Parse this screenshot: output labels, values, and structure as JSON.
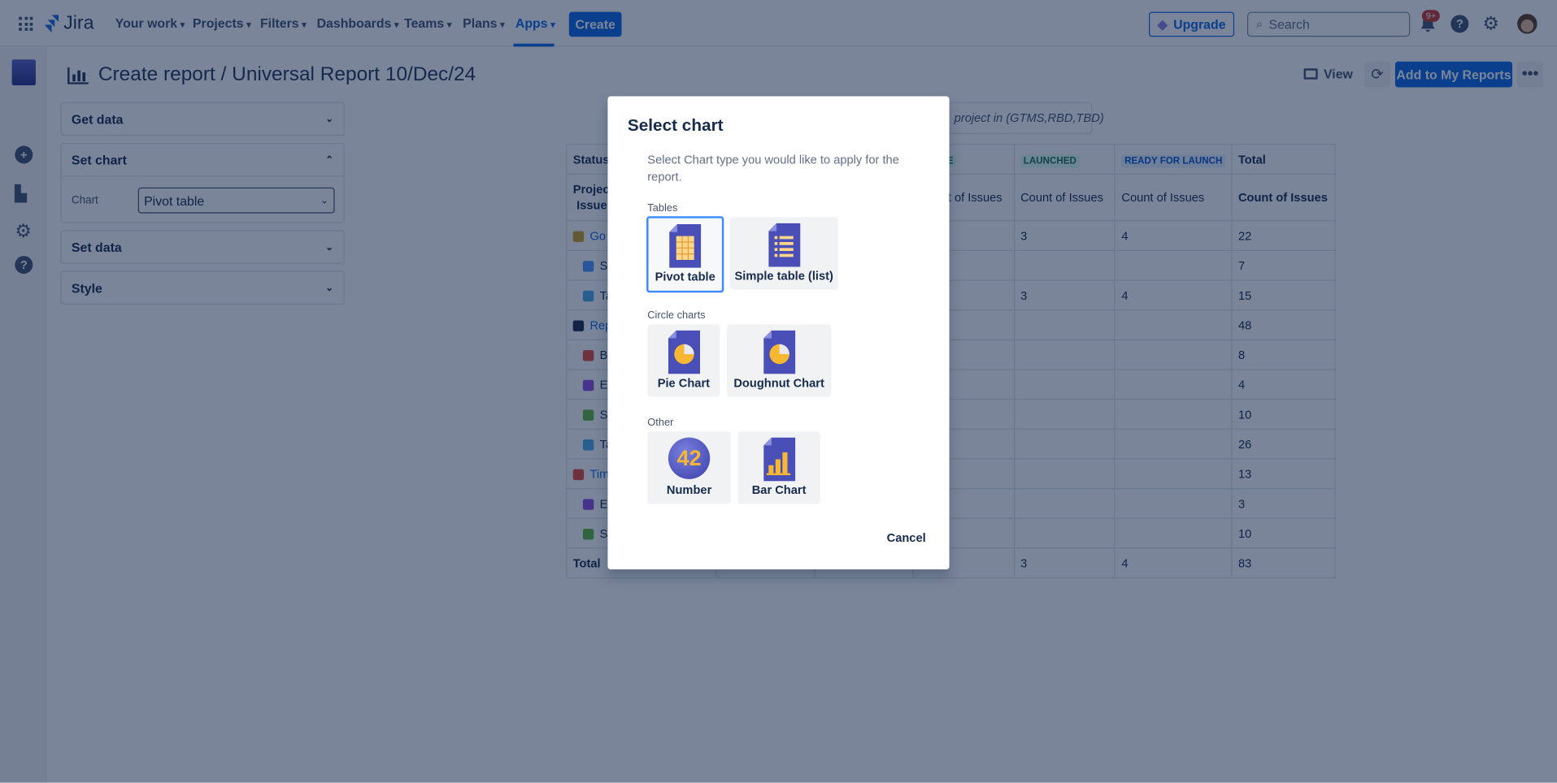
{
  "nav": {
    "product": "Jira",
    "items": [
      "Your work",
      "Projects",
      "Filters",
      "Dashboards",
      "Teams",
      "Plans",
      "Apps"
    ],
    "active": "Apps",
    "create": "Create",
    "upgrade": "Upgrade",
    "search_placeholder": "Search",
    "notifications_badge": "9+"
  },
  "header": {
    "title": "Create report / Universal Report 10/Dec/24",
    "view": "View",
    "add": "Add to My Reports"
  },
  "panels": {
    "get_data": "Get data",
    "set_chart": "Set chart",
    "chart_label": "Chart",
    "chart_value": "Pivot table",
    "set_data": "Set data",
    "style": "Style"
  },
  "filter": "project in (GTMS,RBD,TBD)",
  "table": {
    "h1": {
      "status": "Status",
      "partial": "NE",
      "launched": "LAUNCHED",
      "ready": "READY FOR LAUNCH",
      "total": "Total"
    },
    "h2": {
      "first": "Project Issue",
      "partial": "nt of Issues",
      "c1": "Count of Issues",
      "c2": "Count of Issues",
      "c3": "Count of Issues"
    },
    "rows": [
      {
        "label": "Go",
        "icon": "#c9a227",
        "project": true,
        "launched": "3",
        "ready": "4",
        "total": "22"
      },
      {
        "label": "Su",
        "icon": "#4c9aff",
        "launched": "",
        "ready": "",
        "total": "7"
      },
      {
        "label": "Ta",
        "icon": "#4bade8",
        "launched": "3",
        "ready": "4",
        "total": "15"
      },
      {
        "label": "Rep",
        "icon": "#1d2a4a",
        "project": true,
        "launched": "",
        "ready": "",
        "total": "48"
      },
      {
        "label": "Bu",
        "icon": "#e5493a",
        "launched": "",
        "ready": "",
        "total": "8"
      },
      {
        "label": "Ep",
        "icon": "#904ee2",
        "launched": "",
        "ready": "",
        "total": "4"
      },
      {
        "label": "St",
        "icon": "#63ba3c",
        "launched": "",
        "ready": "",
        "total": "10"
      },
      {
        "label": "Ta",
        "icon": "#4bade8",
        "launched": "",
        "ready": "",
        "total": "26"
      },
      {
        "label": "Tim",
        "icon": "#e5493a",
        "project": true,
        "launched": "",
        "ready": "",
        "total": "13"
      },
      {
        "label": "Ep",
        "icon": "#904ee2",
        "launched": "",
        "ready": "",
        "total": "3"
      },
      {
        "label": "St",
        "icon": "#63ba3c",
        "launched": "",
        "ready": "",
        "total": "10"
      }
    ],
    "footer": {
      "label": "Total",
      "launched": "3",
      "ready": "4",
      "total": "83"
    }
  },
  "modal": {
    "title": "Select chart",
    "description": "Select Chart type you would like to apply for the report.",
    "tables_label": "Tables",
    "circle_label": "Circle charts",
    "other_label": "Other",
    "pivot": "Pivot table",
    "simple": "Simple table (list)",
    "pie": "Pie Chart",
    "doughnut": "Doughnut Chart",
    "number": "Number",
    "number_glyph": "42",
    "bar": "Bar Chart",
    "cancel": "Cancel",
    "selected": "Pivot table"
  },
  "colors": {
    "brand": "#0c66e4",
    "overlay": "#091e42"
  }
}
